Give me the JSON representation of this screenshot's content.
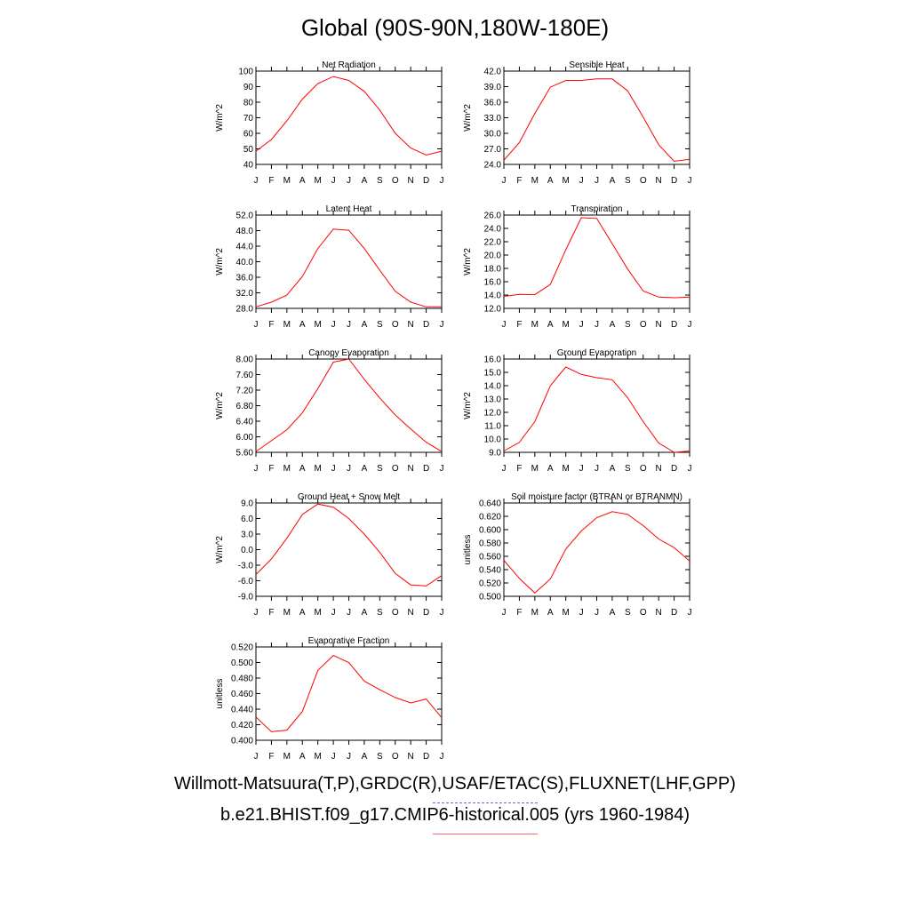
{
  "title": "Global (90S-90N,180W-180E)",
  "months": [
    "J",
    "F",
    "M",
    "A",
    "M",
    "J",
    "J",
    "A",
    "S",
    "O",
    "N",
    "D",
    "J"
  ],
  "legend": {
    "obs_label": "Willmott-Matsuura(T,P),GRDC(R),USAF/ETAC(S),FLUXNET(LHF,GPP)",
    "obs_color": "#6666ff",
    "model_label": "b.e21.BHIST.f09_g17.CMIP6-historical.005 (yrs 1960-1984)",
    "model_color": "#ff0000"
  },
  "chart_data": [
    {
      "type": "line",
      "title": "Net Radiation",
      "ylabel": "W/m^2",
      "ylim": [
        40,
        100
      ],
      "yticks": [
        40,
        50,
        60,
        70,
        80,
        90,
        100
      ],
      "decimals": 0,
      "series": [
        {
          "values": [
            48.5,
            56,
            68,
            82,
            92,
            96.5,
            94,
            87,
            75,
            60,
            50.5,
            46,
            48.5
          ]
        }
      ]
    },
    {
      "type": "line",
      "title": "Sensible Heat",
      "ylabel": "W/m^2",
      "ylim": [
        24,
        42
      ],
      "yticks": [
        24,
        27,
        30,
        33,
        36,
        39,
        42
      ],
      "decimals": 1,
      "series": [
        {
          "values": [
            24.8,
            28.2,
            33.8,
            38.9,
            40.2,
            40.2,
            40.5,
            40.5,
            38.2,
            33.1,
            27.8,
            24.6,
            25.0
          ]
        }
      ]
    },
    {
      "type": "line",
      "title": "Latent Heat",
      "ylabel": "W/m^2",
      "ylim": [
        28,
        52
      ],
      "yticks": [
        28,
        32,
        36,
        40,
        44,
        48,
        52
      ],
      "decimals": 1,
      "series": [
        {
          "values": [
            28.4,
            29.6,
            31.4,
            36.2,
            43.4,
            48.4,
            48.1,
            43.4,
            37.8,
            32.4,
            29.6,
            28.4,
            28.4
          ]
        }
      ]
    },
    {
      "type": "line",
      "title": "Transpiration",
      "ylabel": "W/m^2",
      "ylim": [
        12,
        26
      ],
      "yticks": [
        12,
        14,
        16,
        18,
        20,
        22,
        24,
        26
      ],
      "decimals": 1,
      "series": [
        {
          "values": [
            13.8,
            14.1,
            14.05,
            15.6,
            20.8,
            25.6,
            25.5,
            21.7,
            17.9,
            14.6,
            13.7,
            13.6,
            13.7
          ]
        }
      ]
    },
    {
      "type": "line",
      "title": "Canopy Evaporation",
      "ylabel": "W/m^2",
      "ylim": [
        5.6,
        8.0
      ],
      "yticks": [
        5.6,
        6.0,
        6.4,
        6.8,
        7.2,
        7.6,
        8.0
      ],
      "decimals": 2,
      "series": [
        {
          "values": [
            5.62,
            5.9,
            6.18,
            6.62,
            7.24,
            7.92,
            8.0,
            7.48,
            7.0,
            6.56,
            6.2,
            5.86,
            5.62
          ]
        }
      ]
    },
    {
      "type": "line",
      "title": "Ground Evaporation",
      "ylabel": "W/m^2",
      "ylim": [
        9,
        16
      ],
      "yticks": [
        9,
        10,
        11,
        12,
        13,
        14,
        15,
        16
      ],
      "decimals": 1,
      "series": [
        {
          "values": [
            9.1,
            9.75,
            11.3,
            14.0,
            15.4,
            14.85,
            14.6,
            14.45,
            13.1,
            11.3,
            9.7,
            9.0,
            9.1
          ]
        }
      ]
    },
    {
      "type": "line",
      "title": "Ground Heat + Snow Melt",
      "ylabel": "W/m^2",
      "ylim": [
        -9,
        9
      ],
      "yticks": [
        -9,
        -6,
        -3,
        0,
        3,
        6,
        9
      ],
      "decimals": 1,
      "series": [
        {
          "values": [
            -4.8,
            -1.8,
            2.2,
            6.8,
            8.8,
            8.2,
            6.0,
            3.0,
            -0.5,
            -4.6,
            -6.8,
            -7.0,
            -5.0
          ]
        }
      ]
    },
    {
      "type": "line",
      "title": "Soil moisture factor (BTRAN or BTRANMN)",
      "ylabel": "unitless",
      "ylim": [
        0.5,
        0.64
      ],
      "yticks": [
        0.5,
        0.52,
        0.54,
        0.56,
        0.58,
        0.6,
        0.62,
        0.64
      ],
      "decimals": 3,
      "series": [
        {
          "values": [
            0.554,
            0.527,
            0.505,
            0.526,
            0.571,
            0.598,
            0.618,
            0.627,
            0.623,
            0.606,
            0.586,
            0.573,
            0.553
          ]
        }
      ]
    },
    {
      "type": "line",
      "title": "Evaporative Fraction",
      "ylabel": "unitless",
      "ylim": [
        0.4,
        0.52
      ],
      "yticks": [
        0.4,
        0.42,
        0.44,
        0.46,
        0.48,
        0.5,
        0.52
      ],
      "decimals": 3,
      "series": [
        {
          "values": [
            0.43,
            0.411,
            0.413,
            0.437,
            0.49,
            0.509,
            0.5,
            0.476,
            0.465,
            0.455,
            0.448,
            0.453,
            0.429
          ]
        }
      ]
    }
  ]
}
